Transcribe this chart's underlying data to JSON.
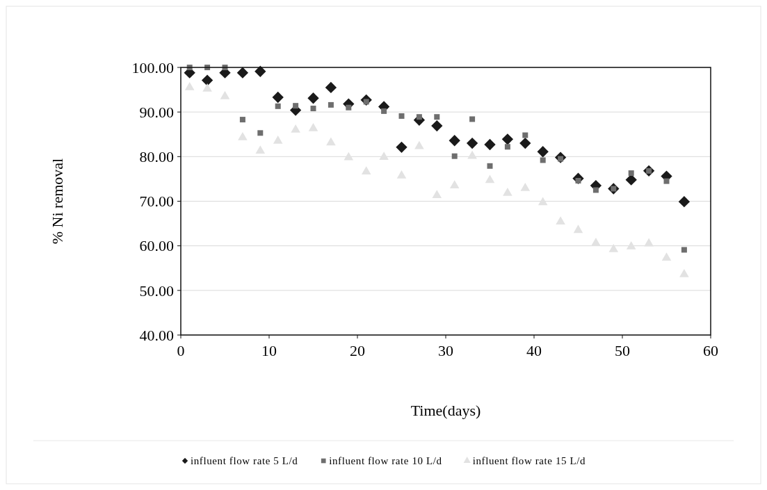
{
  "chart_data": {
    "type": "scatter",
    "xlabel": "Time(days)",
    "ylabel": "% Ni removal",
    "xlim": [
      0,
      60
    ],
    "xticks": [
      0,
      10,
      20,
      30,
      40,
      50,
      60
    ],
    "ylim": [
      40,
      100
    ],
    "yticks": [
      {
        "value": 40,
        "label": "40.00"
      },
      {
        "value": 50,
        "label": "50.00"
      },
      {
        "value": 60,
        "label": "60.00"
      },
      {
        "value": 70,
        "label": "70.00"
      },
      {
        "value": 80,
        "label": "80.00"
      },
      {
        "value": 90,
        "label": "90.00"
      },
      {
        "value": 100,
        "label": "100.00"
      }
    ],
    "grid": "y",
    "legend": "bottom",
    "x": [
      1,
      3,
      5,
      7,
      9,
      11,
      13,
      15,
      17,
      19,
      21,
      23,
      25,
      27,
      29,
      31,
      33,
      35,
      37,
      39,
      41,
      43,
      45,
      47,
      49,
      51,
      53,
      55,
      57
    ],
    "series": [
      {
        "name": "influent flow rate 5 L/d",
        "color": "#1a1a1a",
        "marker": "diamond",
        "values": [
          98.8,
          97.1,
          98.8,
          98.8,
          99.1,
          93.3,
          90.4,
          93.1,
          95.5,
          91.8,
          92.7,
          91.2,
          82.1,
          88.2,
          86.9,
          83.6,
          83.0,
          82.7,
          83.9,
          83.0,
          81.1,
          79.8,
          75.1,
          73.5,
          72.8,
          74.8,
          76.8,
          75.6,
          69.9
        ]
      },
      {
        "name": "influent flow rate 10 L/d",
        "color": "#6e6e6e",
        "marker": "square",
        "values": [
          100.0,
          100.0,
          100.0,
          88.3,
          85.3,
          91.3,
          91.4,
          90.8,
          91.6,
          91.0,
          92.3,
          90.2,
          89.1,
          88.9,
          88.9,
          80.1,
          88.4,
          77.9,
          82.2,
          84.8,
          79.2,
          79.5,
          74.6,
          72.5,
          72.8,
          76.3,
          76.8,
          74.5,
          59.1
        ]
      },
      {
        "name": "influent flow rate 15 L/d",
        "color": "#e2e2e2",
        "marker": "triangle",
        "values": [
          95.5,
          95.2,
          93.5,
          84.3,
          81.3,
          83.5,
          86.0,
          86.3,
          83.1,
          79.8,
          76.6,
          79.9,
          75.7,
          82.3,
          71.3,
          73.5,
          80.1,
          74.7,
          71.8,
          72.9,
          69.7,
          65.4,
          63.5,
          60.6,
          59.2,
          59.8,
          60.5,
          57.3,
          53.6
        ]
      }
    ]
  }
}
